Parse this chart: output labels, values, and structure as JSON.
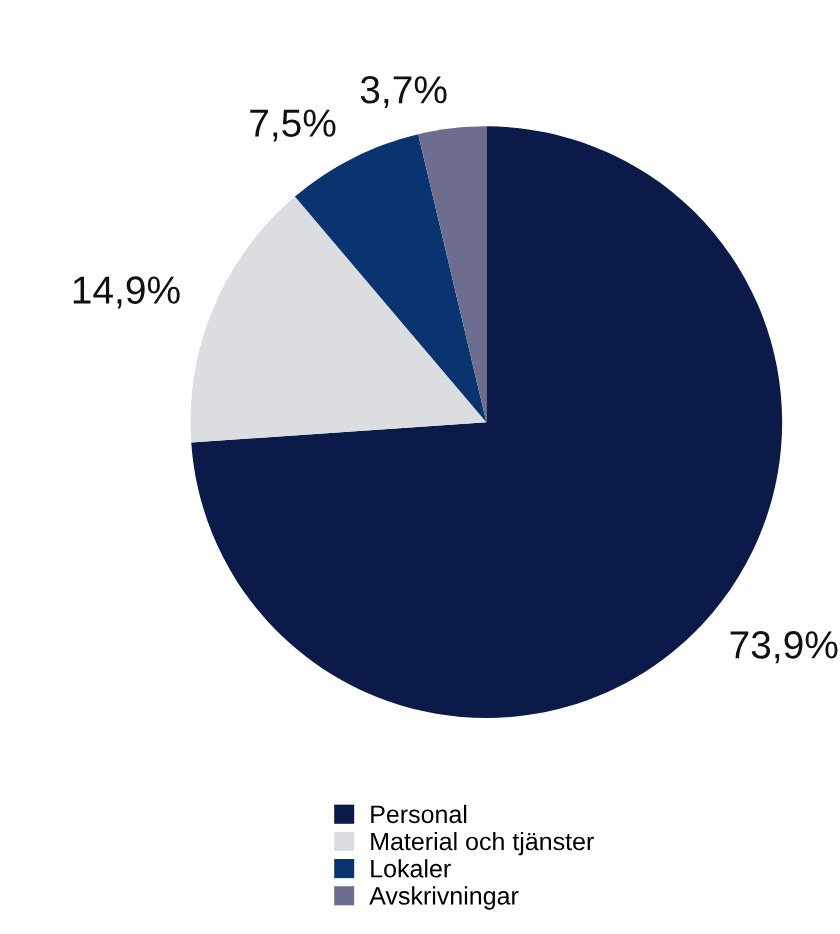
{
  "chart_data": {
    "type": "pie",
    "categories": [
      "Personal",
      "Material och tjänster",
      "Lokaler",
      "Avskrivningar"
    ],
    "values": [
      73.9,
      14.9,
      7.5,
      3.7
    ],
    "value_labels": [
      "73,9%",
      "14,9%",
      "7,5%",
      "3,7%"
    ],
    "colors": [
      "#0b1a48",
      "#dcdde0",
      "#0a3470",
      "#6d6d90"
    ],
    "legend": "bottom"
  }
}
